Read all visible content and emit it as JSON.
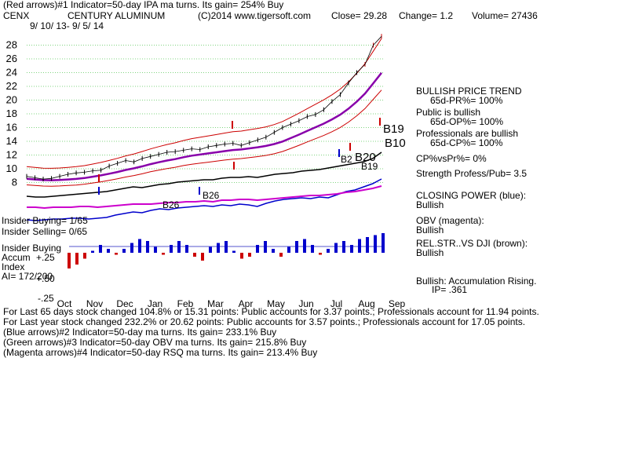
{
  "header": {
    "line1": "(Red arrows)#1 Indicator=50-day IPA ma turns. Its gain= 254% Buy",
    "ticker": "CENX",
    "company": "CENTURY ALUMINUM",
    "copyright": "(C)2014 www.tigersoft.com",
    "close": "Close= 29.28",
    "change": "Change= 1.2",
    "volume": "Volume= 27436",
    "dates": "9/ 10/ 13- 9/ 5/ 14"
  },
  "right_panel": {
    "trend_title": "BULLISH PRICE TREND",
    "pr": "65d-PR%= 100%",
    "public": "Public is bullish",
    "op": "65d-OP%= 100%",
    "pros": "Professionals are bullish",
    "cp": "65d-CP%= 100%",
    "cpvspr": "CP%vsPr%= 0%",
    "strength": "Strength Profess/Pub= 3.5",
    "closing_power": "CLOSING POWER (blue):",
    "closing_power_val": "Bullish",
    "obv": "OBV (magenta):",
    "obv_val": "Bullish",
    "relstr": "REL.STR..VS DJI (brown):",
    "relstr_val": "Bullish",
    "accum": "Bullish: Accumulation Rising.",
    "ip": "IP= .361"
  },
  "left_labels": {
    "insider_buying1": "Insider Buying= 1/65",
    "insider_selling": "Insider Selling= 0/65",
    "insider_buying2": "Insider Buying",
    "accum": "Accum",
    "index": "Index",
    "ai": "AI= 172/200",
    "plus25": "+.25",
    "plus50": "+.50",
    "minus25": "-.25"
  },
  "signals": {
    "b26a": "B26",
    "b26b": "B26",
    "b2": "B2",
    "b20": "B20",
    "b19a": "B19",
    "b19b": "B19",
    "b10": "B10"
  },
  "footer": {
    "line1": "For Last 65 days stock changed 104.8% or 15.31 points: Public accounts for 3.37 points.; Professionals account for 11.94 points.",
    "line2": "For Last year stock changed 232.2% or 20.62 points: Public accounts for 3.57 points.; Professionals account for 17.05 points.",
    "line3": "(Blue arrows)#2 Indicator=50-day ma turns. Its gain= 233.1% Buy",
    "line4": "(Green arrows)#3 Indicator=50-day OBV ma turns. Its gain= 215.8% Buy",
    "line5": "(Magenta arrows)#4 Indicator=50-day RSQ ma turns. Its gain= 213.4% Buy"
  },
  "colors": {
    "price": "#000000",
    "band": "#cc0000",
    "ma": "#8800aa",
    "closing_power": "#0000cc",
    "obv": "#cc00cc",
    "relstr": "#000000",
    "accum": "#0000cc",
    "distrib": "#cc0000",
    "grid": "#00aa00"
  },
  "chart_data": {
    "type": "line",
    "ylim": [
      6,
      30
    ],
    "yticks": [
      8,
      10,
      12,
      14,
      16,
      18,
      20,
      22,
      24,
      26,
      28
    ],
    "months": [
      "Oct",
      "Nov",
      "Dec",
      "Jan",
      "Feb",
      "Mar",
      "Apr",
      "May",
      "Jun",
      "Jul",
      "Aug",
      "Sep"
    ],
    "series": [
      {
        "key": "price",
        "values": [
          8.9,
          8.7,
          8.5,
          8.6,
          8.9,
          9.2,
          9.4,
          9.5,
          9.7,
          9.8,
          10.4,
          10.8,
          11.2,
          11.0,
          11.5,
          11.8,
          12.1,
          12.4,
          12.5,
          12.7,
          12.9,
          12.8,
          13.2,
          13.4,
          13.6,
          13.7,
          13.4,
          13.8,
          14.2,
          14.6,
          15.3,
          16.0,
          16.5,
          17.0,
          17.6,
          17.9,
          18.6,
          19.8,
          20.8,
          22.5,
          24.0,
          25.2,
          28.0,
          29.28
        ]
      }
    ],
    "indicators": {
      "closing_power": [
        70,
        69,
        70,
        71,
        71,
        72,
        72,
        71,
        72,
        73,
        76,
        78,
        80,
        79,
        82,
        84,
        83,
        85,
        86,
        87,
        88,
        87,
        89,
        88,
        90,
        89,
        87,
        91,
        94,
        96,
        97,
        98,
        97,
        99,
        98,
        102,
        106,
        108,
        112,
        116,
        122
      ],
      "obv": [
        86,
        86,
        85,
        86,
        86,
        86,
        87,
        87,
        86,
        87,
        88,
        89,
        90,
        90,
        90,
        91,
        92,
        92,
        93,
        93,
        94,
        93,
        95,
        95,
        96,
        96,
        95,
        96,
        97,
        98,
        99,
        100,
        101,
        101,
        102,
        103,
        105,
        106,
        108,
        110,
        113
      ],
      "relstr": [
        100,
        99,
        99,
        100,
        101,
        102,
        103,
        104,
        105,
        106,
        108,
        110,
        112,
        111,
        113,
        115,
        116,
        118,
        119,
        120,
        121,
        121,
        123,
        124,
        124,
        125,
        124,
        126,
        128,
        129,
        130,
        132,
        133,
        134,
        136,
        138,
        140,
        142,
        144,
        148,
        156
      ],
      "accum": [
        -0.4,
        -0.3,
        -0.15,
        0.05,
        0.2,
        0.1,
        -0.05,
        0.1,
        0.25,
        0.35,
        0.3,
        0.15,
        -0.05,
        0.2,
        0.3,
        0.2,
        -0.1,
        -0.2,
        0.15,
        0.25,
        0.3,
        0.05,
        -0.15,
        -0.1,
        0.2,
        0.3,
        0.1,
        -0.1,
        0.15,
        0.3,
        0.35,
        0.2,
        -0.05,
        0.1,
        0.25,
        0.3,
        0.2,
        0.35,
        0.4,
        0.45,
        0.5
      ]
    }
  }
}
